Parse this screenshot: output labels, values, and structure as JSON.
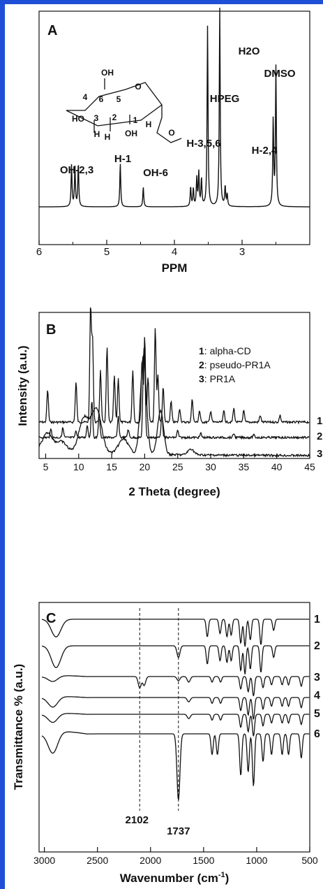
{
  "panels": {
    "A": {
      "letter": "A",
      "xlabel": "PPM",
      "ticks": [
        "6",
        "5",
        "4",
        "3"
      ],
      "peak_labels": [
        {
          "text": "OH-2,3",
          "ppm": 5.47
        },
        {
          "text": "H-1",
          "ppm": 4.8
        },
        {
          "text": "OH-6",
          "ppm": 4.46
        },
        {
          "text": "H-3,5,6",
          "ppm": 3.7
        },
        {
          "text": "HPEG",
          "ppm": 3.51
        },
        {
          "text": "H2O",
          "ppm": 3.33
        },
        {
          "text": "H-2,4",
          "ppm": 3.22
        },
        {
          "text": "DMSO",
          "ppm": 2.5
        }
      ],
      "structure_labels": [
        "4",
        "6",
        "5",
        "O",
        "OH",
        "HO",
        "3",
        "2",
        "1",
        "OH",
        "O",
        "H",
        "H",
        "H"
      ]
    },
    "B": {
      "letter": "B",
      "xlabel": "2 Theta (degree)",
      "ylabel": "Intensity (a.u.)",
      "ticks": [
        "5",
        "10",
        "15",
        "20",
        "25",
        "30",
        "35",
        "40",
        "45"
      ],
      "legend": [
        {
          "num": "1",
          "label": ": alpha-CD"
        },
        {
          "num": "2",
          "label": ": pseudo-PR1A"
        },
        {
          "num": "3",
          "label": ": PR1A"
        }
      ],
      "trace_labels": [
        "1",
        "2",
        "3"
      ]
    },
    "C": {
      "letter": "C",
      "xlabel": "Wavenumber (cm",
      "xlabel_sup": "-1",
      "xlabel_end": ")",
      "ylabel": "Transmittance % (a.u.)",
      "ticks": [
        "3000",
        "2500",
        "2000",
        "1500",
        "1000",
        "500"
      ],
      "trace_labels": [
        "1",
        "2",
        "3",
        "4",
        "5",
        "6"
      ],
      "annotations": [
        "2102",
        "1737"
      ]
    }
  },
  "chart_data": [
    {
      "type": "line",
      "panel": "A",
      "title": "",
      "xlabel": "PPM",
      "ylabel": "",
      "xlim": [
        6,
        2
      ],
      "x_reversed": true,
      "series": [
        {
          "peaks_ppm": [
            5.52,
            5.47,
            5.42,
            4.8,
            4.46,
            3.76,
            3.72,
            3.67,
            3.64,
            3.6,
            3.51,
            3.33,
            3.25,
            3.22,
            2.54,
            2.5
          ],
          "relative_intensity": [
            0.21,
            0.2,
            0.22,
            0.22,
            0.1,
            0.1,
            0.09,
            0.14,
            0.17,
            0.14,
            0.91,
            1.0,
            0.1,
            0.06,
            0.44,
            0.7
          ]
        }
      ]
    },
    {
      "type": "line",
      "panel": "B",
      "title": "",
      "xlabel": "2 Theta (degree)",
      "ylabel": "Intensity (a.u.)",
      "xlim": [
        4,
        45
      ],
      "series": [
        {
          "name": "alpha-CD",
          "label_num": "1",
          "peaks_2theta": [
            5.3,
            9.6,
            11.8,
            12.1,
            13.3,
            14.3,
            15.4,
            16.0,
            18.2,
            19.6,
            20.0,
            20.5,
            21.6,
            22.0,
            22.8,
            24.0,
            25.3,
            27.2,
            28.3,
            30.0,
            32.0,
            33.5,
            35.0,
            37.5,
            40.5
          ],
          "peak_intensity": [
            0.28,
            0.35,
            1.0,
            0.72,
            0.45,
            0.65,
            0.4,
            0.38,
            0.45,
            0.55,
            0.75,
            0.4,
            0.82,
            0.42,
            0.3,
            0.18,
            0.12,
            0.2,
            0.1,
            0.1,
            0.1,
            0.12,
            0.1,
            0.06,
            0.06
          ]
        },
        {
          "name": "pseudo-PR1A",
          "label_num": "2",
          "peaks_2theta": [
            5.8,
            7.6,
            9.6,
            11.3,
            12.0,
            13.1,
            16.0,
            17.5,
            19.8,
            20.0,
            22.6,
            25.0,
            28.5,
            33.5,
            36.5
          ],
          "peak_intensity": [
            0.12,
            0.14,
            0.1,
            0.18,
            0.55,
            0.35,
            0.3,
            0.12,
            0.85,
            1.0,
            0.35,
            0.1,
            0.06,
            0.06,
            0.04
          ]
        },
        {
          "name": "PR1A",
          "label_num": "3",
          "peaks_2theta": [
            5.3,
            7.4,
            10.8,
            12.7,
            16.8,
            19.8,
            22.4,
            27.0
          ],
          "peak_intensity": [
            0.18,
            0.1,
            0.35,
            0.45,
            0.15,
            1.0,
            0.45,
            0.06
          ]
        }
      ]
    },
    {
      "type": "line",
      "panel": "C",
      "title": "",
      "xlabel": "Wavenumber (cm-1)",
      "ylabel": "Transmittance % (a.u.)",
      "xlim": [
        3050,
        500
      ],
      "x_reversed": true,
      "reference_lines": [
        2102,
        1737
      ],
      "series": [
        {
          "label_num": "1",
          "dips_cm": [
            2890,
            1465,
            1345,
            1280,
            1240,
            1150,
            1110,
            1060,
            960,
            840
          ],
          "dip_depth": [
            0.55,
            0.55,
            0.45,
            0.55,
            0.5,
            0.75,
            0.85,
            0.65,
            0.8,
            0.35
          ]
        },
        {
          "label_num": "2",
          "dips_cm": [
            2890,
            1737,
            1465,
            1345,
            1280,
            1240,
            1150,
            1110,
            1060,
            960,
            840
          ],
          "dip_depth": [
            0.65,
            0.35,
            0.55,
            0.45,
            0.5,
            0.45,
            0.75,
            0.85,
            0.7,
            0.8,
            0.35
          ]
        },
        {
          "label_num": "3",
          "dips_cm": [
            2920,
            2102,
            2060,
            1737,
            1640,
            1420,
            1340,
            1150,
            1080,
            1030,
            940,
            860,
            760,
            700,
            580
          ],
          "dip_depth": [
            0.2,
            0.4,
            0.32,
            0.15,
            0.2,
            0.2,
            0.2,
            0.45,
            0.55,
            0.7,
            0.4,
            0.3,
            0.3,
            0.3,
            0.35
          ]
        },
        {
          "label_num": "4",
          "dips_cm": [
            2920,
            1640,
            1420,
            1340,
            1150,
            1080,
            1030,
            940,
            860,
            760,
            700,
            580
          ],
          "dip_depth": [
            0.35,
            0.15,
            0.2,
            0.2,
            0.45,
            0.6,
            0.75,
            0.4,
            0.3,
            0.3,
            0.3,
            0.35
          ]
        },
        {
          "label_num": "5",
          "dips_cm": [
            2920,
            1640,
            1420,
            1340,
            1150,
            1080,
            1030,
            940,
            860,
            760,
            700,
            580
          ],
          "dip_depth": [
            0.3,
            0.15,
            0.2,
            0.2,
            0.45,
            0.6,
            0.75,
            0.4,
            0.3,
            0.3,
            0.3,
            0.35
          ]
        },
        {
          "label_num": "6",
          "dips_cm": [
            2920,
            1737,
            1420,
            1370,
            1150,
            1080,
            1030,
            940,
            860,
            760,
            700,
            580
          ],
          "dip_depth": [
            0.3,
            0.95,
            0.3,
            0.3,
            0.6,
            0.55,
            0.75,
            0.4,
            0.3,
            0.3,
            0.3,
            0.35
          ]
        }
      ]
    }
  ]
}
